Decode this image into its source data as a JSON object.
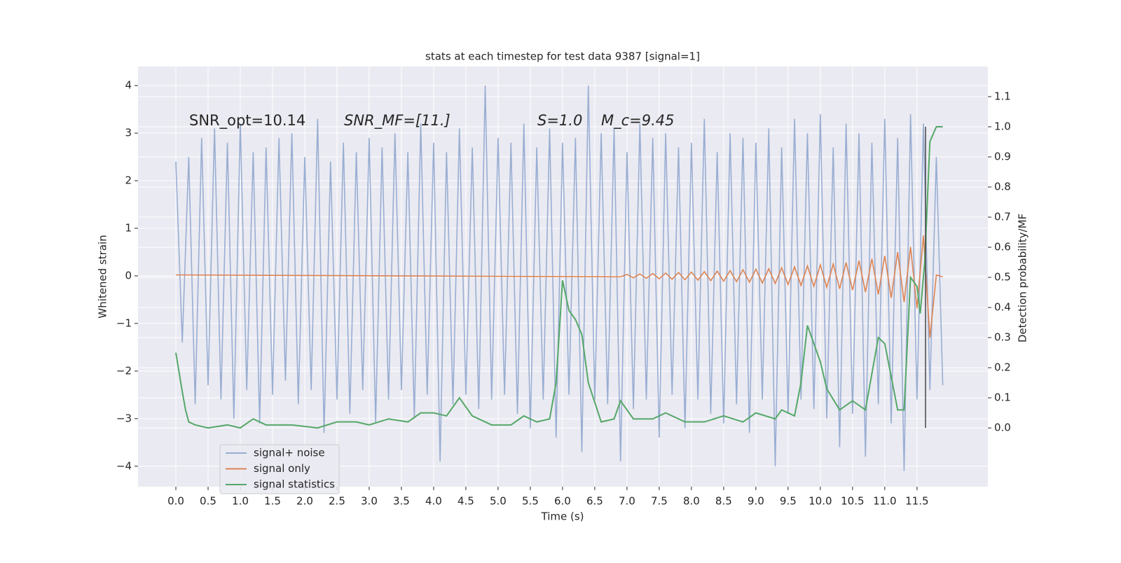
{
  "chart_data": {
    "type": "line",
    "title": "stats at each timestep for test data 9387 [signal=1]",
    "xlabel": "Time (s)",
    "ylabel": "Whitened strain",
    "y2label": "Detection probability/MF",
    "annotations": [
      "SNR_opt=10.14",
      "SNR_MF=[11.]",
      "S=1.0",
      "M_c=9.45"
    ],
    "grid": true,
    "legend": "lower left",
    "xlim": [
      -0.587,
      12.6
    ],
    "ylim": [
      -4.43,
      4.4
    ],
    "y2lim": [
      -0.195,
      1.2
    ],
    "xticks": [
      {
        "value": 0,
        "label": "0.0"
      },
      0.5,
      {
        "value": 1,
        "label": "1.0"
      },
      1.5,
      {
        "value": 2,
        "label": "2.0"
      },
      2.5,
      {
        "value": 3,
        "label": "3.0"
      },
      3.5,
      {
        "value": 4,
        "label": "4.0"
      },
      4.5,
      {
        "value": 5,
        "label": "5.0"
      },
      5.5,
      {
        "value": 6,
        "label": "6.0"
      },
      6.5,
      {
        "value": 7,
        "label": "7.0"
      },
      7.5,
      {
        "value": 8,
        "label": "8.0"
      },
      8.5,
      {
        "value": 9,
        "label": "9.0"
      },
      9.5,
      {
        "value": 10,
        "label": "10.0"
      },
      10.5,
      {
        "value": 11,
        "label": "11.0"
      },
      11.5
    ],
    "yticks": [
      {
        "value": -4,
        "label": "−4"
      },
      {
        "value": -3,
        "label": "−3"
      },
      {
        "value": -2,
        "label": "−2"
      },
      {
        "value": -1,
        "label": "−1"
      },
      0,
      1,
      2,
      3,
      4
    ],
    "y2ticks": [
      {
        "value": 0,
        "label": "0.0"
      },
      0.1,
      0.2,
      0.3,
      0.4,
      0.5,
      0.6,
      0.7,
      0.8,
      0.9,
      {
        "value": 1,
        "label": "1.0"
      },
      1.1
    ],
    "series": [
      {
        "name": "signal+ noise",
        "color": "#99aed2",
        "x": [
          0.0,
          0.1,
          0.2,
          0.3,
          0.4,
          0.5,
          0.6,
          0.7,
          0.8,
          0.9,
          1.0,
          1.1,
          1.2,
          1.3,
          1.4,
          1.5,
          1.6,
          1.7,
          1.8,
          1.9,
          2.0,
          2.1,
          2.2,
          2.3,
          2.4,
          2.5,
          2.6,
          2.7,
          2.8,
          2.9,
          3.0,
          3.1,
          3.2,
          3.3,
          3.4,
          3.5,
          3.6,
          3.7,
          3.8,
          3.9,
          4.0,
          4.1,
          4.2,
          4.3,
          4.4,
          4.5,
          4.6,
          4.7,
          4.8,
          4.9,
          5.0,
          5.1,
          5.2,
          5.3,
          5.4,
          5.5,
          5.6,
          5.7,
          5.8,
          5.9,
          6.0,
          6.1,
          6.2,
          6.3,
          6.4,
          6.5,
          6.6,
          6.7,
          6.8,
          6.9,
          7.0,
          7.1,
          7.2,
          7.3,
          7.4,
          7.5,
          7.6,
          7.7,
          7.8,
          7.9,
          8.0,
          8.1,
          8.2,
          8.3,
          8.4,
          8.5,
          8.6,
          8.7,
          8.8,
          8.9,
          9.0,
          9.1,
          9.2,
          9.3,
          9.4,
          9.5,
          9.6,
          9.7,
          9.8,
          9.9,
          10.0,
          10.1,
          10.2,
          10.3,
          10.4,
          10.5,
          10.6,
          10.7,
          10.8,
          10.9,
          11.0,
          11.1,
          11.2,
          11.3,
          11.4,
          11.5,
          11.6,
          11.7,
          11.8,
          11.9
        ],
        "values": [
          2.4,
          -1.4,
          2.5,
          -2.7,
          2.9,
          -2.3,
          3.1,
          -2.6,
          2.8,
          -3.0,
          3.2,
          -2.4,
          2.6,
          -3.1,
          2.7,
          -2.5,
          2.9,
          -2.2,
          3.0,
          -2.7,
          2.5,
          -2.4,
          3.3,
          -3.3,
          2.4,
          -2.6,
          2.8,
          -2.9,
          2.6,
          -2.4,
          2.9,
          -3.1,
          2.7,
          -2.6,
          3.0,
          -2.4,
          2.6,
          -3.0,
          3.2,
          -2.5,
          2.8,
          -3.9,
          2.6,
          -2.7,
          3.1,
          -2.5,
          2.7,
          -2.8,
          4.0,
          -2.6,
          2.9,
          -2.5,
          2.8,
          -2.9,
          3.2,
          -3.2,
          2.7,
          -2.6,
          3.1,
          -3.4,
          2.8,
          -2.5,
          2.9,
          -3.7,
          4.0,
          -2.6,
          3.0,
          -2.7,
          3.1,
          -3.9,
          2.6,
          -2.8,
          3.2,
          -2.6,
          2.9,
          -3.4,
          3.0,
          -2.5,
          2.7,
          -3.2,
          2.8,
          -2.6,
          3.3,
          -2.9,
          2.6,
          -3.1,
          3.0,
          -2.7,
          2.9,
          -3.3,
          2.8,
          -2.6,
          3.1,
          -4.0,
          2.7,
          -2.9,
          3.3,
          -2.6,
          3.0,
          -2.8,
          3.4,
          -3.0,
          2.7,
          -3.6,
          3.2,
          -2.9,
          3.0,
          -3.8,
          2.8,
          -2.7,
          3.3,
          -3.1,
          2.9,
          -4.1,
          3.4,
          -2.6,
          3.2,
          -2.4,
          2.5,
          -2.3
        ]
      },
      {
        "name": "signal only",
        "color": "#dd8452",
        "x": [
          0.0,
          6.9,
          7.0,
          7.1,
          7.2,
          7.3,
          7.4,
          7.5,
          7.6,
          7.7,
          7.8,
          7.9,
          8.0,
          8.1,
          8.2,
          8.3,
          8.4,
          8.5,
          8.6,
          8.7,
          8.8,
          8.9,
          9.0,
          9.1,
          9.2,
          9.3,
          9.4,
          9.5,
          9.6,
          9.7,
          9.8,
          9.9,
          10.0,
          10.1,
          10.2,
          10.3,
          10.4,
          10.5,
          10.6,
          10.7,
          10.8,
          10.9,
          11.0,
          11.1,
          11.2,
          11.3,
          11.4,
          11.5,
          11.6,
          11.7,
          11.8,
          11.9
        ],
        "values": [
          0.02,
          -0.02,
          0.03,
          -0.04,
          0.04,
          -0.05,
          0.05,
          -0.06,
          0.06,
          -0.07,
          0.07,
          -0.08,
          0.08,
          -0.09,
          0.09,
          -0.1,
          0.1,
          -0.11,
          0.11,
          -0.12,
          0.13,
          -0.13,
          0.14,
          -0.15,
          0.15,
          -0.16,
          0.17,
          -0.18,
          0.19,
          -0.2,
          0.21,
          -0.22,
          0.23,
          -0.24,
          0.25,
          -0.27,
          0.28,
          -0.3,
          0.32,
          -0.34,
          0.36,
          -0.39,
          0.42,
          -0.46,
          0.5,
          -0.55,
          0.61,
          -0.68,
          0.85,
          -1.3,
          0.02,
          -0.02
        ]
      },
      {
        "name": "signal statistics",
        "color": "#55a868",
        "axis": "y2",
        "x": [
          0.0,
          0.1,
          0.15,
          0.2,
          0.3,
          0.5,
          0.8,
          1.0,
          1.2,
          1.4,
          1.8,
          2.2,
          2.5,
          2.8,
          3.0,
          3.3,
          3.6,
          3.8,
          4.0,
          4.2,
          4.4,
          4.6,
          4.9,
          5.2,
          5.4,
          5.6,
          5.8,
          5.9,
          6.0,
          6.1,
          6.2,
          6.3,
          6.4,
          6.6,
          6.8,
          6.9,
          7.1,
          7.4,
          7.6,
          7.9,
          8.2,
          8.5,
          8.8,
          9.0,
          9.3,
          9.4,
          9.6,
          9.7,
          9.8,
          10.0,
          10.1,
          10.3,
          10.5,
          10.7,
          10.9,
          11.0,
          11.2,
          11.3,
          11.4,
          11.5,
          11.55,
          11.62,
          11.7,
          11.8,
          11.9
        ],
        "values": [
          0.25,
          0.12,
          0.06,
          0.02,
          0.01,
          0.0,
          0.01,
          0.0,
          0.03,
          0.01,
          0.01,
          0.0,
          0.02,
          0.02,
          0.01,
          0.03,
          0.02,
          0.05,
          0.05,
          0.04,
          0.1,
          0.04,
          0.01,
          0.01,
          0.04,
          0.02,
          0.03,
          0.15,
          0.49,
          0.39,
          0.36,
          0.31,
          0.15,
          0.02,
          0.03,
          0.09,
          0.03,
          0.03,
          0.05,
          0.02,
          0.02,
          0.04,
          0.02,
          0.05,
          0.03,
          0.06,
          0.04,
          0.15,
          0.34,
          0.22,
          0.13,
          0.06,
          0.09,
          0.06,
          0.3,
          0.28,
          0.06,
          0.06,
          0.5,
          0.47,
          0.38,
          0.55,
          0.95,
          1.0,
          1.0
        ]
      }
    ]
  }
}
